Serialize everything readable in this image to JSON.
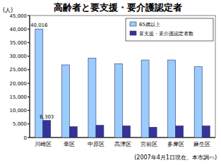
{
  "chart_data": {
    "type": "bar",
    "title": "高齢者と要支援・要介護認定者",
    "ylabel": "(人)",
    "annotations": [
      "(2007年4月1日現在、本市調べ)"
    ],
    "categories": [
      "川崎区",
      "幸区",
      "中原区",
      "高津区",
      "宮前区",
      "多摩区",
      "麻生区"
    ],
    "series": [
      {
        "name": "65歳以上",
        "color": "#99ccff",
        "values": [
          40016,
          26800,
          29300,
          27200,
          28600,
          28600,
          26100
        ],
        "value_labels": [
          "40,016",
          null,
          null,
          null,
          null,
          null,
          null
        ]
      },
      {
        "name": "要支援・要介護認定者数",
        "color": "#333399",
        "values": [
          6303,
          4000,
          4500,
          4300,
          3800,
          4300,
          4300
        ],
        "value_labels": [
          "6,303",
          null,
          null,
          null,
          null,
          null,
          null
        ]
      }
    ],
    "ylim": [
      0,
      45000
    ],
    "yticks": [
      0,
      {
        "value": 5000,
        "label": "5,000"
      },
      {
        "value": 10000,
        "label": "10,000"
      },
      {
        "value": 15000,
        "label": "15,000"
      },
      {
        "value": 20000,
        "label": "20,000"
      },
      {
        "value": 25000,
        "label": "25,000"
      },
      {
        "value": 30000,
        "label": "30,000"
      },
      {
        "value": 35000,
        "label": "35,000"
      },
      {
        "value": 40000,
        "label": "40,000"
      },
      {
        "value": 45000,
        "label": "45,000"
      }
    ],
    "grid": false,
    "legend": "upper right",
    "data_labels": true
  }
}
